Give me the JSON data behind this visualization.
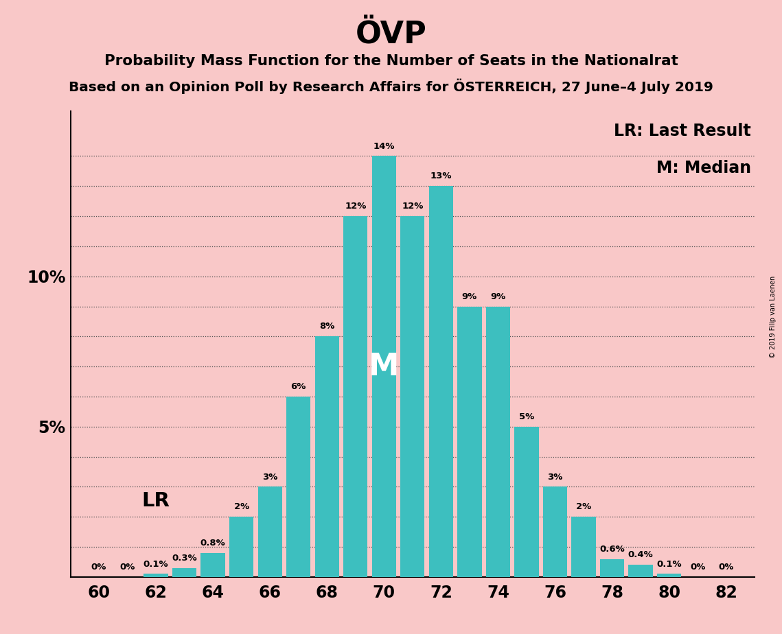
{
  "title": "ÖVP",
  "subtitle1": "Probability Mass Function for the Number of Seats in the Nationalrat",
  "subtitle2": "Based on an Opinion Poll by Research Affairs for ÖSTERREICH, 27 June–4 July 2019",
  "copyright": "© 2019 Filip van Laenen",
  "legend_lr": "LR: Last Result",
  "legend_m": "M: Median",
  "categories": [
    60,
    61,
    62,
    63,
    64,
    65,
    66,
    67,
    68,
    69,
    70,
    71,
    72,
    73,
    74,
    75,
    76,
    77,
    78,
    79,
    80,
    81,
    82
  ],
  "values": [
    0,
    0,
    0.1,
    0.3,
    0.8,
    2,
    3,
    6,
    8,
    12,
    14,
    12,
    13,
    9,
    9,
    5,
    3,
    2,
    0.6,
    0.4,
    0.1,
    0,
    0
  ],
  "bar_color": "#3dbfbf",
  "background_color": "#f9c8c8",
  "text_color": "#000000",
  "lr_x": 62,
  "median_x": 70,
  "yticks": [
    0,
    1,
    2,
    3,
    4,
    5,
    6,
    7,
    8,
    9,
    10,
    11,
    12,
    13,
    14
  ],
  "ylim": [
    0,
    15.5
  ],
  "xlim": [
    59,
    83
  ],
  "xticks": [
    60,
    62,
    64,
    66,
    68,
    70,
    72,
    74,
    76,
    78,
    80,
    82
  ],
  "bar_labels": {
    "60": "0%",
    "61": "0%",
    "62": "0.1%",
    "63": "0.3%",
    "64": "0.8%",
    "65": "2%",
    "66": "3%",
    "67": "6%",
    "68": "8%",
    "69": "12%",
    "70": "14%",
    "71": "12%",
    "72": "13%",
    "73": "9%",
    "74": "9%",
    "75": "5%",
    "76": "3%",
    "77": "2%",
    "78": "0.6%",
    "79": "0.4%",
    "80": "0.1%",
    "81": "0%",
    "82": "0%"
  }
}
